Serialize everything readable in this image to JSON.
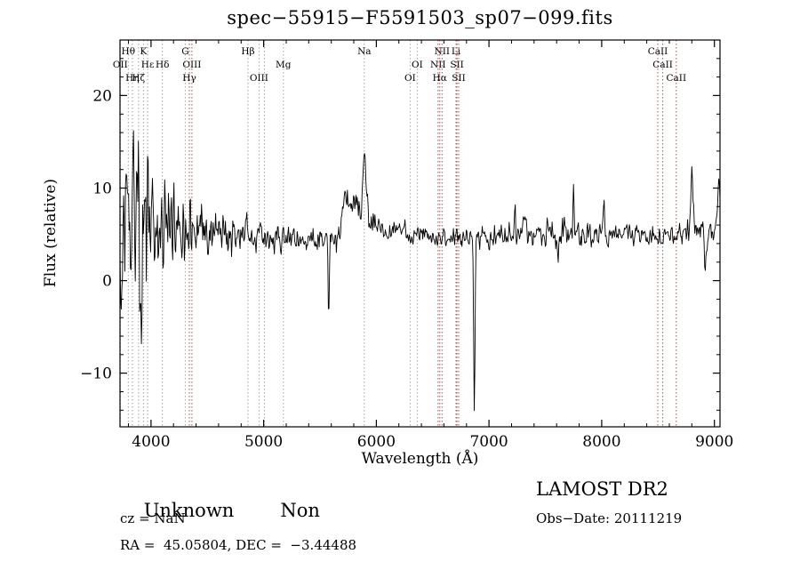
{
  "title": "spec−55915−F5591503_sp07−099.fits",
  "axes": {
    "x_label": "Wavelength (Å)",
    "y_label": "Flux (relative)",
    "x_ticks": [
      4000,
      5000,
      6000,
      7000,
      8000,
      9000
    ],
    "y_ticks": [
      -10,
      0,
      10,
      20
    ],
    "x_range": [
      3725,
      9050
    ],
    "y_range": [
      -15.8,
      26
    ],
    "x_minor_step": 200,
    "y_minor_step": 2
  },
  "footer": {
    "class_label": "Unknown",
    "subclass_label": "Non",
    "cz_line": "cz = NaN",
    "ra_dec_line": "RA =  45.05804, DEC =  −3.44488",
    "survey": "LAMOST DR2",
    "obs_date_line": "Obs−Date: 20111219"
  },
  "colors": {
    "spectrum": "#000000",
    "frame": "#000000",
    "marker_gray": "#a8a0a0",
    "marker_red": "#cc4444",
    "label": "#1a1a1a"
  },
  "line_markers": [
    {
      "label": "Hθ",
      "wl": 3798,
      "row": 0,
      "color": "gray"
    },
    {
      "label": "K",
      "wl": 3933,
      "row": 0,
      "color": "gray"
    },
    {
      "label": "G",
      "wl": 4304,
      "row": 0,
      "color": "gray"
    },
    {
      "label": "Hβ",
      "wl": 4861,
      "row": 0,
      "color": "gray"
    },
    {
      "label": "Na",
      "wl": 5893,
      "row": 0,
      "color": "gray"
    },
    {
      "label": "NII",
      "wl": 6583,
      "row": 0,
      "color": "red"
    },
    {
      "label": "Li",
      "wl": 6708,
      "row": 0,
      "color": "red"
    },
    {
      "label": "CaII",
      "wl": 8498,
      "row": 0,
      "color": "red"
    },
    {
      "label": "OII",
      "wl": 3727,
      "row": 1,
      "color": "gray"
    },
    {
      "label": "Hε",
      "wl": 3970,
      "row": 1,
      "color": "gray"
    },
    {
      "label": "Hδ",
      "wl": 4101,
      "row": 1,
      "color": "gray"
    },
    {
      "label": "OIII",
      "wl": 4363,
      "row": 1,
      "color": "red"
    },
    {
      "label": "Mg",
      "wl": 5175,
      "row": 1,
      "color": "gray"
    },
    {
      "label": "OI",
      "wl": 6363,
      "row": 1,
      "color": "gray"
    },
    {
      "label": "NII",
      "wl": 6548,
      "row": 1,
      "color": "red"
    },
    {
      "label": "SII",
      "wl": 6716,
      "row": 1,
      "color": "red"
    },
    {
      "label": "CaII",
      "wl": 8542,
      "row": 1,
      "color": "red"
    },
    {
      "label": "Hη",
      "wl": 3835,
      "row": 2,
      "color": "gray"
    },
    {
      "label": "Hζ",
      "wl": 3889,
      "row": 2,
      "color": "gray"
    },
    {
      "label": "Hγ",
      "wl": 4340,
      "row": 2,
      "color": "red"
    },
    {
      "label": "OIII",
      "wl": 4959,
      "row": 2,
      "color": "gray"
    },
    {
      "label": "",
      "wl": 5007,
      "row": 2,
      "color": "gray"
    },
    {
      "label": "OI",
      "wl": 6300,
      "row": 2,
      "color": "gray"
    },
    {
      "label": "Hα",
      "wl": 6563,
      "row": 2,
      "color": "red"
    },
    {
      "label": "SII",
      "wl": 6731,
      "row": 2,
      "color": "red"
    },
    {
      "label": "CaII",
      "wl": 8662,
      "row": 2,
      "color": "red"
    }
  ],
  "chart_data": {
    "type": "line",
    "title": "spec−55915−F5591503_sp07−099.fits",
    "xlabel": "Wavelength (Å)",
    "ylabel": "Flux (relative)",
    "x_range": [
      3725,
      9050
    ],
    "y_range": [
      -15.8,
      26
    ],
    "n_points": 980,
    "seed": 20111219,
    "baseline_points": [
      [
        3725,
        6.0
      ],
      [
        4000,
        6.3
      ],
      [
        4300,
        5.8
      ],
      [
        4600,
        5.4
      ],
      [
        5000,
        4.8
      ],
      [
        5400,
        4.2
      ],
      [
        5650,
        4.6
      ],
      [
        5800,
        8.3
      ],
      [
        5950,
        6.8
      ],
      [
        6100,
        5.2
      ],
      [
        6400,
        4.8
      ],
      [
        6800,
        4.6
      ],
      [
        7200,
        4.8
      ],
      [
        7600,
        5.0
      ],
      [
        8000,
        5.0
      ],
      [
        8400,
        4.8
      ],
      [
        8700,
        5.0
      ],
      [
        9050,
        5.2
      ]
    ],
    "noise_envelope": [
      [
        3725,
        10.0
      ],
      [
        3800,
        9.5
      ],
      [
        3900,
        8.5
      ],
      [
        4000,
        7.0
      ],
      [
        4100,
        5.5
      ],
      [
        4300,
        3.5
      ],
      [
        4500,
        2.2
      ],
      [
        4800,
        1.8
      ],
      [
        5200,
        1.4
      ],
      [
        5600,
        1.3
      ],
      [
        5900,
        1.6
      ],
      [
        6200,
        1.0
      ],
      [
        6600,
        0.9
      ],
      [
        7000,
        1.1
      ],
      [
        7400,
        1.4
      ],
      [
        7800,
        1.5
      ],
      [
        8200,
        1.1
      ],
      [
        8600,
        1.0
      ],
      [
        9050,
        1.3
      ]
    ],
    "features": [
      {
        "center": 5577,
        "amplitude": -7.5,
        "sigma": 5
      },
      {
        "center": 5720,
        "amplitude": 2.5,
        "sigma": 25
      },
      {
        "center": 5893,
        "amplitude": 7.5,
        "sigma": 12
      },
      {
        "center": 6870,
        "amplitude": -18,
        "sigma": 6
      },
      {
        "center": 7230,
        "amplitude": 3.5,
        "sigma": 5
      },
      {
        "center": 7330,
        "amplitude": 2.5,
        "sigma": 5
      },
      {
        "center": 7600,
        "amplitude": -1.5,
        "sigma": 10
      },
      {
        "center": 7750,
        "amplitude": 5.0,
        "sigma": 5
      },
      {
        "center": 8020,
        "amplitude": 4.0,
        "sigma": 6
      },
      {
        "center": 8800,
        "amplitude": 7.0,
        "sigma": 9
      },
      {
        "center": 8920,
        "amplitude": -3.5,
        "sigma": 10
      },
      {
        "center": 9040,
        "amplitude": 5.5,
        "sigma": 12
      }
    ]
  }
}
